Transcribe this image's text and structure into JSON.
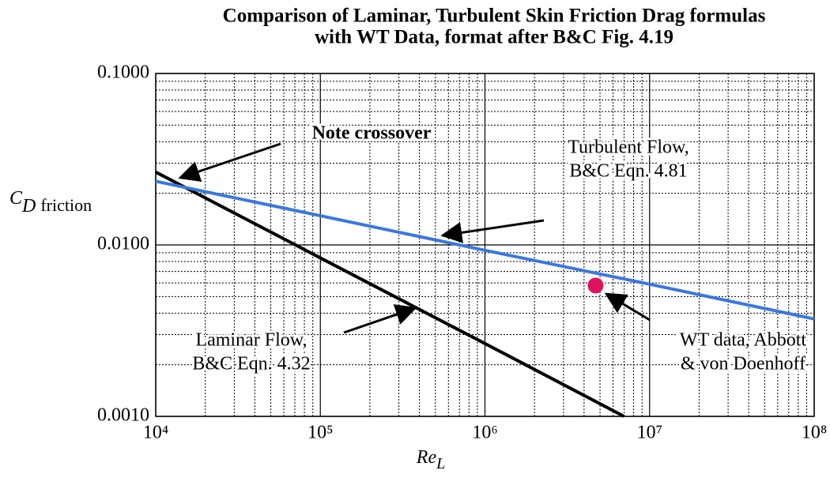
{
  "chart_data": {
    "type": "line",
    "title": [
      "Comparison of Laminar, Turbulent Skin Friction Drag formulas",
      "with WT Data, format after B&C Fig. 4.19"
    ],
    "x_label": [
      "Re",
      "L"
    ],
    "y_label": [
      "C",
      "D",
      "friction"
    ],
    "log_x": true,
    "log_y": true,
    "grid": true,
    "xlim": [
      10000,
      100000000
    ],
    "ylim": [
      0.001,
      0.1
    ],
    "xticks": [
      {
        "value": 10000,
        "label": "10⁴"
      },
      {
        "value": 100000,
        "label": "10⁵"
      },
      {
        "value": 1000000,
        "label": "10⁶"
      },
      {
        "value": 10000000,
        "label": "10⁷"
      },
      {
        "value": 100000000,
        "label": "10⁸"
      }
    ],
    "yticks": [
      {
        "value": 0.001,
        "label": "0.0010"
      },
      {
        "value": 0.01,
        "label": "0.0100"
      },
      {
        "value": 0.1,
        "label": "0.1000"
      }
    ],
    "xminor": [
      20000,
      30000,
      40000,
      50000,
      60000,
      70000,
      80000,
      90000,
      200000,
      300000,
      400000,
      500000,
      600000,
      700000,
      800000,
      900000,
      2000000,
      3000000,
      4000000,
      5000000,
      6000000,
      7000000,
      8000000,
      9000000,
      20000000,
      30000000,
      40000000,
      50000000,
      60000000,
      70000000,
      80000000,
      90000000
    ],
    "yminor": [
      0.002,
      0.003,
      0.004,
      0.005,
      0.006,
      0.007,
      0.008,
      0.009,
      0.02,
      0.03,
      0.04,
      0.05,
      0.06,
      0.07,
      0.08,
      0.09
    ],
    "series": [
      {
        "color": "#000000",
        "x": [
          10000,
          100000,
          1000000,
          7000000
        ],
        "values": [
          0.0266,
          0.0084,
          0.00266,
          0.001
        ]
      },
      {
        "color": "#3a78e0",
        "x": [
          10000,
          100000,
          1000000,
          10000000,
          100000000
        ],
        "values": [
          0.0235,
          0.0148,
          0.0093,
          0.0059,
          0.0037
        ]
      }
    ],
    "points": {
      "color": "#e0115f",
      "x": [
        4700000
      ],
      "values": [
        0.0058
      ]
    },
    "annotations": [
      {
        "text": [
          "Note crossover"
        ]
      },
      {
        "text": [
          "Turbulent Flow,",
          "B&C Eqn. 4.81"
        ]
      },
      {
        "text": [
          "Laminar Flow,",
          "B&C Eqn. 4.32"
        ]
      },
      {
        "text": [
          "WT data, Abbott",
          "& von Doenhoff"
        ]
      }
    ]
  }
}
